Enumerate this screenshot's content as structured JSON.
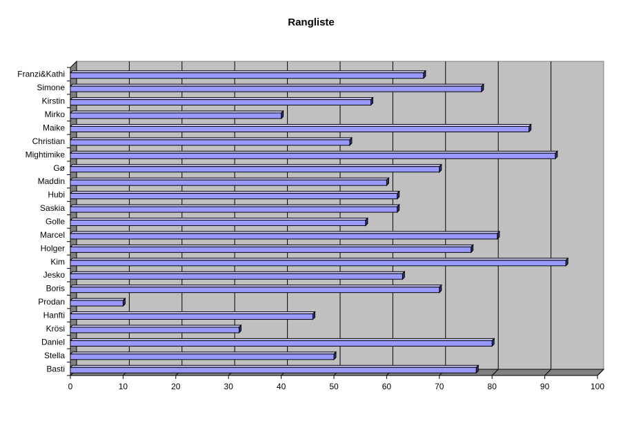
{
  "chart_data": {
    "type": "bar",
    "orientation": "horizontal",
    "title": "Rangliste",
    "xlabel": "",
    "ylabel": "",
    "xlim": [
      0,
      100
    ],
    "xticks": [
      0,
      10,
      20,
      30,
      40,
      50,
      60,
      70,
      80,
      90,
      100
    ],
    "grid": true,
    "legend": "none",
    "categories": [
      "Franzi&Kathi",
      "Simone",
      "Kirstin",
      "Mirko",
      "Maike",
      "Christian",
      "Mightimike",
      "Gø",
      "Maddin",
      "Hubi",
      "Saskia",
      "Golle",
      "Marcel",
      "Holger",
      "Kim",
      "Jesko",
      "Boris",
      "Prodan",
      "Hanfti",
      "Krösi",
      "Daniel",
      "Stella",
      "Basti"
    ],
    "values": [
      67,
      78,
      57,
      40,
      87,
      53,
      92,
      70,
      60,
      62,
      62,
      56,
      81,
      76,
      94,
      63,
      70,
      10,
      46,
      32,
      80,
      50,
      77
    ],
    "colors": {
      "bar_front": "#9999ff",
      "bar_top": "#ccccff",
      "bar_side": "#333366",
      "plot_wall": "#c0c0c0",
      "floor": "#808080",
      "outline": "#000000"
    }
  }
}
